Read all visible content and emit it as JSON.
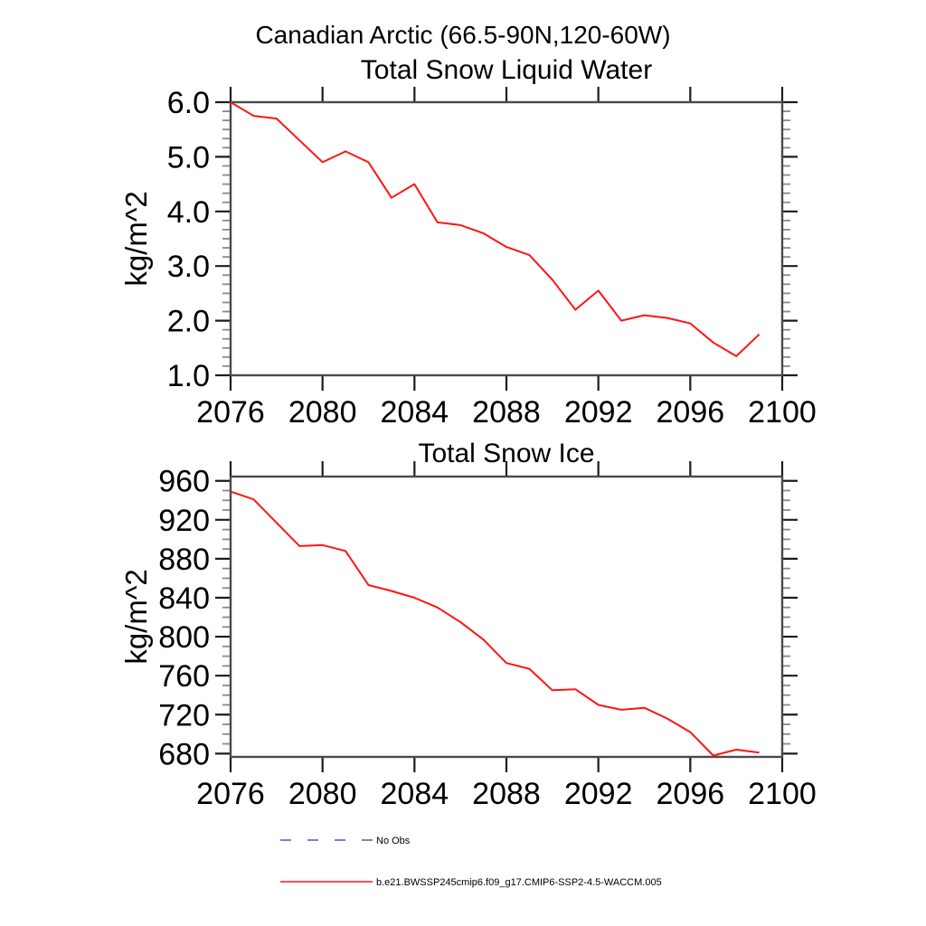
{
  "figure": {
    "title": "Canadian Arctic (66.5-90N,120-60W)",
    "background": "#ffffff"
  },
  "colors": {
    "series_red": "#ff1414",
    "no_obs_blue": "#5555c4",
    "box": "#4a4a4a",
    "major_tick": "#1c1c1c",
    "minor_tick": "#8a8a8a",
    "text": "#000000"
  },
  "chart_data": [
    {
      "type": "line",
      "title": "Total Snow Liquid Water",
      "xlabel": "",
      "ylabel": "kg/m^2",
      "xlim": [
        2076,
        2100
      ],
      "ylim": [
        1.0,
        6.0
      ],
      "xticks": [
        2076,
        2080,
        2084,
        2088,
        2092,
        2096,
        2100
      ],
      "yticks": {
        "values": [
          1.0,
          2.0,
          3.0,
          4.0,
          5.0,
          6.0
        ],
        "labels": [
          "1.0",
          "2.0",
          "3.0",
          "4.0",
          "5.0",
          "6.0"
        ]
      },
      "yminor_step": 0.16667,
      "grid": false,
      "legend_position": "none",
      "series": [
        {
          "name": "b.e21.BWSSP245cmip6.f09_g17.CMIP6-SSP2-4.5-WACCM.005",
          "color": "#ff1414",
          "x": [
            2076,
            2077,
            2078,
            2079,
            2080,
            2081,
            2082,
            2083,
            2084,
            2085,
            2086,
            2087,
            2088,
            2089,
            2090,
            2091,
            2092,
            2093,
            2094,
            2095,
            2096,
            2097,
            2098,
            2099
          ],
          "values": [
            6.0,
            5.75,
            5.7,
            5.3,
            4.9,
            5.1,
            4.9,
            4.25,
            4.5,
            3.8,
            3.75,
            3.6,
            3.35,
            3.2,
            2.75,
            2.2,
            2.55,
            2.0,
            2.1,
            2.05,
            1.95,
            1.6,
            1.35,
            1.75
          ]
        }
      ]
    },
    {
      "type": "line",
      "title": "Total Snow Ice",
      "xlabel": "",
      "ylabel": "kg/m^2",
      "xlim": [
        2076,
        2100
      ],
      "ylim": [
        676.6,
        964.4
      ],
      "xticks": [
        2076,
        2080,
        2084,
        2088,
        2092,
        2096,
        2100
      ],
      "yticks": {
        "values": [
          680,
          720,
          760,
          800,
          840,
          880,
          920,
          960
        ],
        "labels": [
          "680",
          "720",
          "760",
          "800",
          "840",
          "880",
          "920",
          "960"
        ]
      },
      "yminor_step": 10,
      "grid": false,
      "legend_position": "bottom-left",
      "series": [
        {
          "name": "b.e21.BWSSP245cmip6.f09_g17.CMIP6-SSP2-4.5-WACCM.005",
          "color": "#ff1414",
          "x": [
            2076,
            2077,
            2078,
            2079,
            2080,
            2081,
            2082,
            2083,
            2084,
            2085,
            2086,
            2087,
            2088,
            2089,
            2090,
            2091,
            2092,
            2093,
            2094,
            2095,
            2096,
            2097,
            2098,
            2099
          ],
          "values": [
            949,
            941,
            917,
            893,
            894,
            888,
            853,
            847,
            840,
            830,
            815,
            797,
            773,
            767,
            745,
            746,
            730,
            725,
            727,
            716,
            702,
            678,
            684,
            681
          ]
        }
      ]
    }
  ],
  "legend": {
    "items": [
      {
        "label": "No Obs",
        "color": "#5555c4",
        "style": "dashed"
      },
      {
        "label": "b.e21.BWSSP245cmip6.f09_g17.CMIP6-SSP2-4.5-WACCM.005",
        "color": "#ff1414",
        "style": "solid"
      }
    ]
  }
}
